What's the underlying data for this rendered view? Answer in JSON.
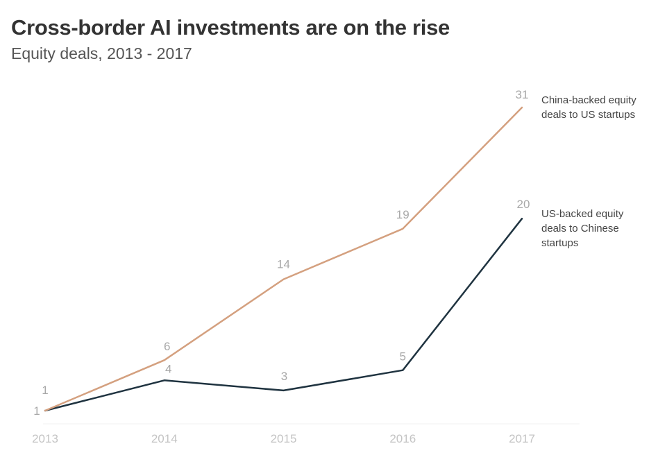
{
  "chart_data": {
    "type": "line",
    "title": "Cross-border AI investments are on the rise",
    "subtitle": "Equity deals, 2013 - 2017",
    "xlabel": "",
    "ylabel": "",
    "x": [
      "2013",
      "2014",
      "2015",
      "2016",
      "2017"
    ],
    "ylim": [
      0,
      32
    ],
    "grid": false,
    "series": [
      {
        "name": "China-backed equity deals to US startups",
        "label_lines": [
          "China-backed equity",
          "deals to US startups"
        ],
        "values": [
          1,
          6,
          14,
          19,
          31
        ],
        "color": "#d4a07f"
      },
      {
        "name": "US-backed equity deals to Chinese startups",
        "label_lines": [
          "US-backed equity",
          "deals to Chinese",
          "startups"
        ],
        "values": [
          1,
          4,
          3,
          5,
          20
        ],
        "color": "#1f3340"
      }
    ]
  }
}
